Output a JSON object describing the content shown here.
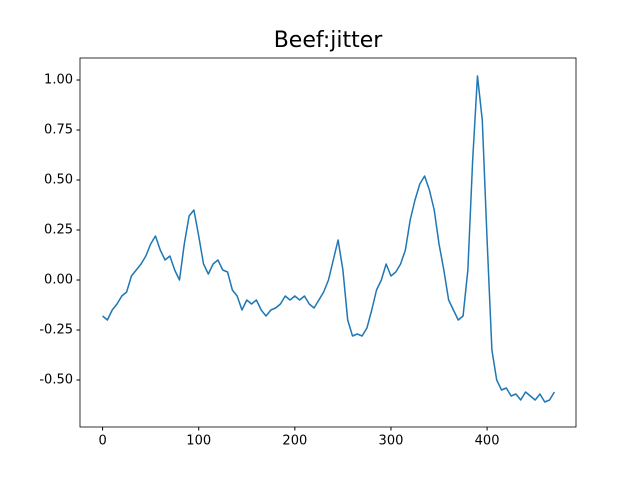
{
  "chart_data": {
    "type": "line",
    "title": "Beef:jitter",
    "color": "#1f77b4",
    "x": [
      0,
      5,
      10,
      15,
      20,
      25,
      30,
      35,
      40,
      45,
      50,
      55,
      60,
      65,
      70,
      75,
      80,
      85,
      90,
      95,
      100,
      105,
      110,
      115,
      120,
      125,
      130,
      135,
      140,
      145,
      150,
      155,
      160,
      165,
      170,
      175,
      180,
      185,
      190,
      195,
      200,
      205,
      210,
      215,
      220,
      225,
      230,
      235,
      240,
      245,
      250,
      255,
      260,
      265,
      270,
      275,
      280,
      285,
      290,
      295,
      300,
      305,
      310,
      315,
      320,
      325,
      330,
      335,
      340,
      345,
      350,
      355,
      360,
      365,
      370,
      375,
      380,
      385,
      390,
      395,
      400,
      405,
      410,
      415,
      420,
      425,
      430,
      435,
      440,
      445,
      450,
      455,
      460,
      465,
      470
    ],
    "values": [
      -0.18,
      -0.2,
      -0.15,
      -0.12,
      -0.08,
      -0.06,
      0.02,
      0.05,
      0.08,
      0.12,
      0.18,
      0.22,
      0.15,
      0.1,
      0.12,
      0.05,
      0.0,
      0.18,
      0.32,
      0.35,
      0.22,
      0.08,
      0.03,
      0.08,
      0.1,
      0.05,
      0.04,
      -0.05,
      -0.08,
      -0.15,
      -0.1,
      -0.12,
      -0.1,
      -0.15,
      -0.18,
      -0.15,
      -0.14,
      -0.12,
      -0.08,
      -0.1,
      -0.08,
      -0.1,
      -0.08,
      -0.12,
      -0.14,
      -0.1,
      -0.06,
      0.0,
      0.1,
      0.2,
      0.05,
      -0.2,
      -0.28,
      -0.27,
      -0.28,
      -0.24,
      -0.15,
      -0.05,
      0.0,
      0.08,
      0.02,
      0.04,
      0.08,
      0.15,
      0.3,
      0.4,
      0.48,
      0.52,
      0.45,
      0.35,
      0.18,
      0.05,
      -0.1,
      -0.15,
      -0.2,
      -0.18,
      0.05,
      0.6,
      1.02,
      0.8,
      0.2,
      -0.35,
      -0.5,
      -0.55,
      -0.54,
      -0.58,
      -0.57,
      -0.6,
      -0.56,
      -0.58,
      -0.6,
      -0.57,
      -0.61,
      -0.6,
      -0.56
    ],
    "xlim": [
      -23.5,
      492.5
    ],
    "ylim": [
      -0.735,
      1.11
    ],
    "xticks": [
      0,
      100,
      200,
      300,
      400
    ],
    "yticks": [
      {
        "value": -0.5,
        "label": "-0.50"
      },
      {
        "value": -0.25,
        "label": "-0.25"
      },
      {
        "value": 0,
        "label": "0.00"
      },
      {
        "value": 0.25,
        "label": "0.25"
      },
      {
        "value": 0.5,
        "label": "0.50"
      },
      {
        "value": 0.75,
        "label": "0.75"
      },
      {
        "value": 1,
        "label": "1.00"
      }
    ]
  }
}
